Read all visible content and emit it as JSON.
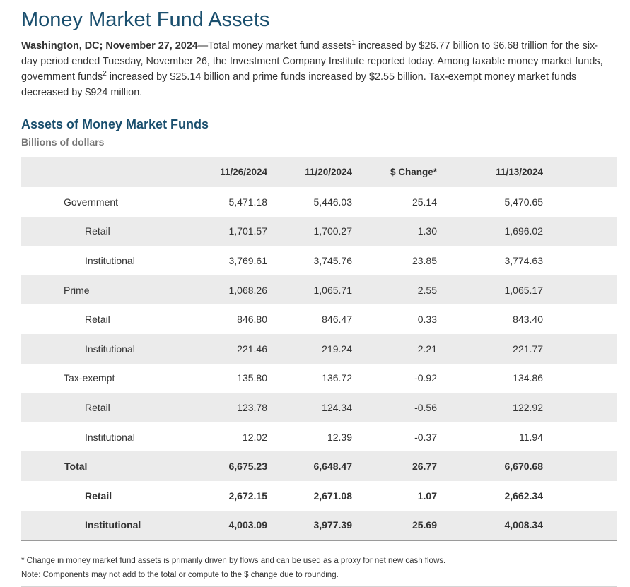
{
  "page_title": "Money Market Fund Assets",
  "intro": {
    "dateline": "Washington, DC; November 27, 2024",
    "t1": "—Total money market fund assets",
    "sup1": "1",
    "t2": " increased by $26.77 billion to $6.68 trillion for the six-day period ended Tuesday, November 26, the Investment Company Institute reported today. Among taxable money market funds, government funds",
    "sup2": "2",
    "t3": " increased by $25.14 billion and prime funds increased by $2.55 billion. Tax-exempt money market funds decreased by $924 million."
  },
  "table": {
    "title": "Assets of Money Market Funds",
    "subtitle": "Billions of dollars",
    "headers": [
      "",
      "11/26/2024",
      "11/20/2024",
      "$ Change*",
      "11/13/2024"
    ],
    "rows": [
      {
        "label": "Government",
        "values": [
          "5,471.18",
          "5,446.03",
          "25.14",
          "5,470.65"
        ]
      },
      {
        "label": "Retail",
        "values": [
          "1,701.57",
          "1,700.27",
          "1.30",
          "1,696.02"
        ]
      },
      {
        "label": "Institutional",
        "values": [
          "3,769.61",
          "3,745.76",
          "23.85",
          "3,774.63"
        ]
      },
      {
        "label": "Prime",
        "values": [
          "1,068.26",
          "1,065.71",
          "2.55",
          "1,065.17"
        ]
      },
      {
        "label": "Retail",
        "values": [
          "846.80",
          "846.47",
          "0.33",
          "843.40"
        ]
      },
      {
        "label": "Institutional",
        "values": [
          "221.46",
          "219.24",
          "2.21",
          "221.77"
        ]
      },
      {
        "label": "Tax-exempt",
        "values": [
          "135.80",
          "136.72",
          "-0.92",
          "134.86"
        ]
      },
      {
        "label": "Retail",
        "values": [
          "123.78",
          "124.34",
          "-0.56",
          "122.92"
        ]
      },
      {
        "label": "Institutional",
        "values": [
          "12.02",
          "12.39",
          "-0.37",
          "11.94"
        ]
      },
      {
        "label": "Total",
        "values": [
          "6,675.23",
          "6,648.47",
          "26.77",
          "6,670.68"
        ]
      },
      {
        "label": "Retail",
        "values": [
          "2,672.15",
          "2,671.08",
          "1.07",
          "2,662.34"
        ]
      },
      {
        "label": "Institutional",
        "values": [
          "4,003.09",
          "3,977.39",
          "25.69",
          "4,008.34"
        ]
      }
    ]
  },
  "notes": [
    "* Change in money market fund assets is primarily driven by flows and can be used as a proxy for net new cash flows.",
    "Note: Components may not add to the total or compute to the $ change due to rounding."
  ]
}
